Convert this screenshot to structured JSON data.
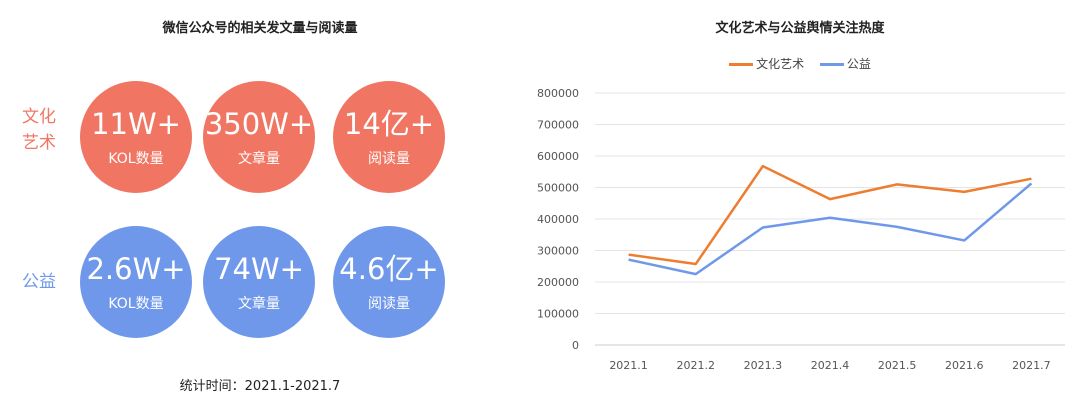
{
  "left": {
    "title": "微信公众号的相关发文量与阅读量",
    "groups": [
      {
        "label": "文化艺术",
        "label_lines": [
          "文化",
          "艺术"
        ],
        "color": "#f07663",
        "stats": [
          {
            "value": "11W+",
            "caption": "KOL数量"
          },
          {
            "value": "350W+",
            "caption": "文章量"
          },
          {
            "value": "14亿+",
            "caption": "阅读量"
          }
        ]
      },
      {
        "label": "公益",
        "label_lines": [
          "公益"
        ],
        "color": "#6f98ea",
        "stats": [
          {
            "value": "2.6W+",
            "caption": "KOL数量"
          },
          {
            "value": "74W+",
            "caption": "文章量"
          },
          {
            "value": "4.6亿+",
            "caption": "阅读量"
          }
        ]
      }
    ],
    "footnote": "统计时间：2021.1-2021.7"
  },
  "chart_data": {
    "type": "line",
    "title": "文化艺术与公益舆情关注热度",
    "categories": [
      "2021.1",
      "2021.2",
      "2021.3",
      "2021.4",
      "2021.5",
      "2021.6",
      "2021.7"
    ],
    "series": [
      {
        "name": "文化艺术",
        "color": "#ed7d31",
        "values": [
          287000,
          257000,
          568000,
          463000,
          510000,
          486000,
          528000
        ]
      },
      {
        "name": "公益",
        "color": "#6f98ea",
        "values": [
          271000,
          225000,
          373000,
          404000,
          375000,
          332000,
          513000
        ]
      }
    ],
    "ylim": [
      0,
      800000
    ],
    "yticks": [
      "0",
      "100000",
      "200000",
      "300000",
      "400000",
      "500000",
      "600000",
      "700000",
      "800000"
    ],
    "grid": true,
    "legend": "top-center",
    "xlabel": "",
    "ylabel": ""
  }
}
